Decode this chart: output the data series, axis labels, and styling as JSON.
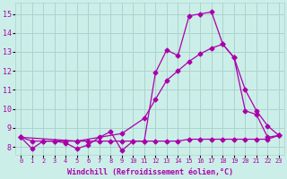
{
  "background_color": "#cceee8",
  "grid_color": "#aad4ce",
  "line_color": "#aa00aa",
  "xlabel": "Windchill (Refroidissement éolien,°C)",
  "xlabel_color": "#aa00aa",
  "tick_color": "#aa00aa",
  "xlim": [
    -0.5,
    23.5
  ],
  "ylim": [
    7.6,
    15.6
  ],
  "yticks": [
    8,
    9,
    10,
    11,
    12,
    13,
    14,
    15
  ],
  "xticks": [
    0,
    1,
    2,
    3,
    4,
    5,
    6,
    7,
    8,
    9,
    10,
    11,
    12,
    13,
    14,
    15,
    16,
    17,
    18,
    19,
    20,
    21,
    22,
    23
  ],
  "line1_x": [
    0,
    1,
    2,
    3,
    4,
    5,
    6,
    7,
    8,
    9,
    10,
    11,
    12,
    13,
    14,
    15,
    16,
    17,
    18,
    19,
    20,
    21,
    22,
    23
  ],
  "line1_y": [
    8.5,
    7.9,
    8.3,
    8.3,
    8.2,
    7.9,
    8.1,
    8.5,
    8.8,
    7.8,
    8.3,
    8.3,
    11.9,
    13.1,
    12.8,
    14.9,
    15.0,
    15.1,
    13.4,
    12.7,
    9.9,
    9.7,
    8.5,
    8.6
  ],
  "line2_x": [
    0,
    1,
    2,
    3,
    4,
    5,
    6,
    7,
    8,
    9,
    10,
    11,
    12,
    13,
    14,
    15,
    16,
    17,
    18,
    19,
    20,
    21,
    22,
    23
  ],
  "line2_y": [
    8.5,
    8.3,
    8.3,
    8.3,
    8.3,
    8.3,
    8.3,
    8.3,
    8.3,
    8.3,
    8.3,
    8.3,
    8.3,
    8.3,
    8.3,
    8.4,
    8.4,
    8.4,
    8.4,
    8.4,
    8.4,
    8.4,
    8.4,
    8.6
  ],
  "line3_x": [
    0,
    5,
    9,
    11,
    12,
    13,
    14,
    15,
    16,
    17,
    18,
    19,
    20,
    21,
    22,
    23
  ],
  "line3_y": [
    8.5,
    8.3,
    8.7,
    9.5,
    10.5,
    11.5,
    12.0,
    12.5,
    12.9,
    13.2,
    13.4,
    12.7,
    11.0,
    9.9,
    9.1,
    8.6
  ],
  "marker": "D",
  "markersize": 2.5,
  "linewidth": 0.9
}
